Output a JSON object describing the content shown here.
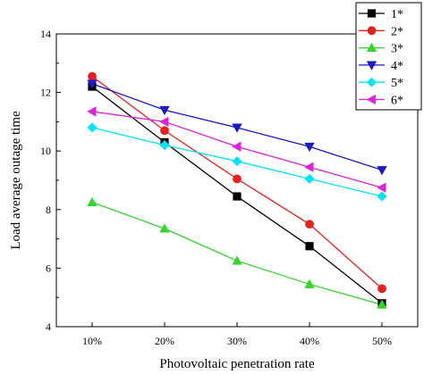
{
  "chart_data": {
    "type": "line",
    "title": "",
    "xlabel": "Photovoltaic penetration rate",
    "ylabel": "Load average outage time",
    "categories": [
      "10%",
      "20%",
      "30%",
      "40%",
      "50%"
    ],
    "ylim": [
      4,
      14
    ],
    "yticks": [
      "4",
      "6",
      "8",
      "10",
      "12",
      "14"
    ],
    "grid": false,
    "legend_position": "top-right",
    "series": [
      {
        "name": "1*",
        "color": "#000000",
        "marker": "square",
        "values": [
          12.2,
          10.3,
          8.45,
          6.75,
          4.8
        ]
      },
      {
        "name": "2*",
        "color": "#e8211d",
        "marker": "circle",
        "values": [
          12.55,
          10.7,
          9.05,
          7.5,
          5.3
        ]
      },
      {
        "name": "3*",
        "color": "#33d62a",
        "marker": "triangle-up",
        "values": [
          8.25,
          7.35,
          6.25,
          5.45,
          4.75
        ]
      },
      {
        "name": "4*",
        "color": "#1a1ac8",
        "marker": "triangle-down",
        "values": [
          12.3,
          11.4,
          10.8,
          10.15,
          9.35
        ]
      },
      {
        "name": "5*",
        "color": "#00e5ff",
        "marker": "diamond",
        "values": [
          10.8,
          10.2,
          9.65,
          9.05,
          8.45
        ]
      },
      {
        "name": "6*",
        "color": "#e020e0",
        "marker": "triangle-left",
        "values": [
          11.35,
          11.0,
          10.15,
          9.45,
          8.75
        ]
      }
    ]
  }
}
